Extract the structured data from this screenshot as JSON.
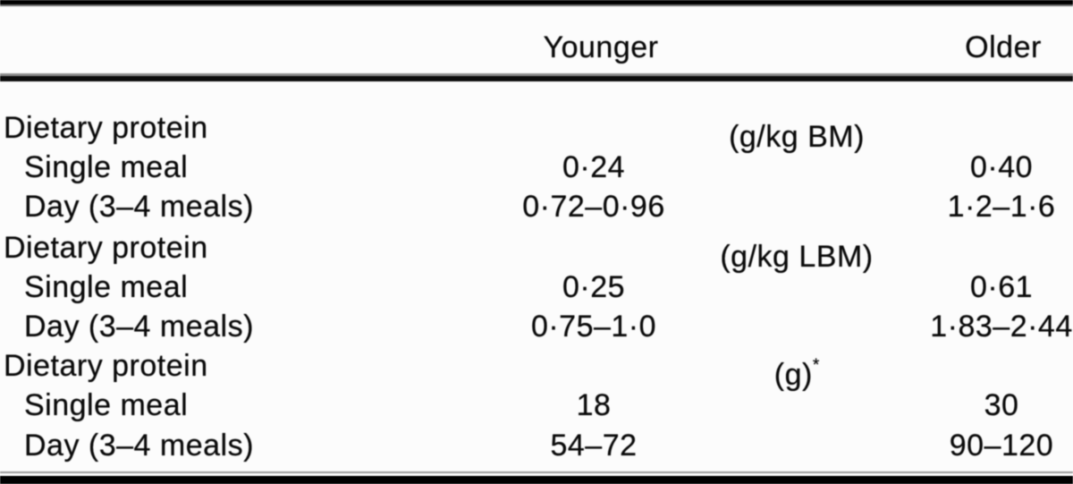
{
  "table": {
    "headers": {
      "younger": "Younger",
      "older": "Older"
    },
    "sections": [
      {
        "group_label": "Dietary protein",
        "unit": "(g/kg BM)",
        "unit_sup": "",
        "rows": [
          {
            "label": "Single meal",
            "younger": "0·24",
            "older": "0·40"
          },
          {
            "label": "Day (3–4 meals)",
            "younger": "0·72–0·96",
            "older": "1·2–1·6"
          }
        ]
      },
      {
        "group_label": "Dietary protein",
        "unit": "(g/kg LBM)",
        "unit_sup": "",
        "rows": [
          {
            "label": "Single meal",
            "younger": "0·25",
            "older": "0·61"
          },
          {
            "label": "Day (3–4 meals)",
            "younger": "0·75–1·0",
            "older": "1·83–2·44"
          }
        ]
      },
      {
        "group_label": "Dietary protein",
        "unit": "(g)",
        "unit_sup": "*",
        "rows": [
          {
            "label": "Single meal",
            "younger": "18",
            "older": "30"
          },
          {
            "label": "Day (3–4 meals)",
            "younger": "54–72",
            "older": "90–120"
          }
        ]
      }
    ]
  },
  "chart_data": {
    "type": "table",
    "columns": [
      "",
      "Younger",
      "Older"
    ],
    "rows": [
      [
        "Dietary protein (g/kg BM)",
        "",
        ""
      ],
      [
        "Single meal",
        "0·24",
        "0·40"
      ],
      [
        "Day (3–4 meals)",
        "0·72–0·96",
        "1·2–1·6"
      ],
      [
        "Dietary protein (g/kg LBM)",
        "",
        ""
      ],
      [
        "Single meal",
        "0·25",
        "0·61"
      ],
      [
        "Day (3–4 meals)",
        "0·75–1·0",
        "1·83–2·44"
      ],
      [
        "Dietary protein (g)*",
        "",
        ""
      ],
      [
        "Single meal",
        "18",
        "30"
      ],
      [
        "Day (3–4 meals)",
        "54–72",
        "90–120"
      ]
    ]
  }
}
